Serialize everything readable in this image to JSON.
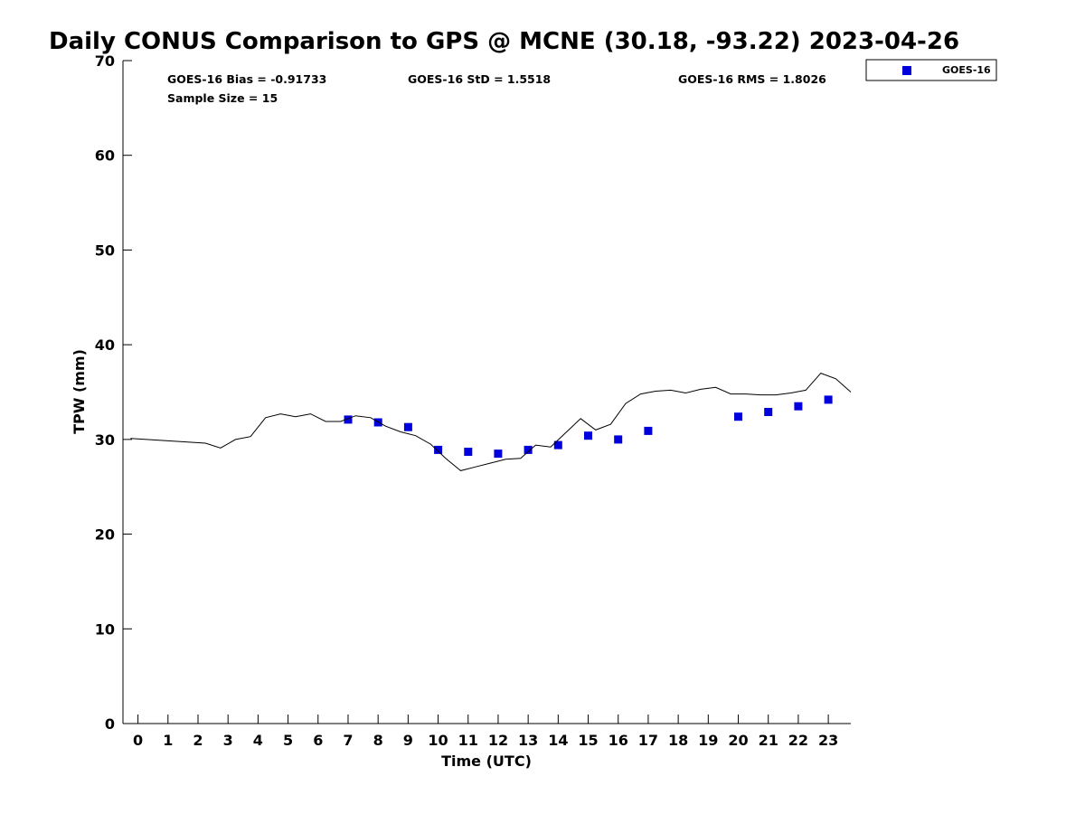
{
  "chart_data": {
    "type": "scatter",
    "title": "Daily CONUS Comparison to GPS @ MCNE (30.18, -93.22) 2023-04-26",
    "xlabel": "Time (UTC)",
    "ylabel": "TPW (mm)",
    "xlim": [
      -0.5,
      23.75
    ],
    "ylim": [
      0,
      70
    ],
    "x_ticks": [
      0,
      1,
      2,
      3,
      4,
      5,
      6,
      7,
      8,
      9,
      10,
      11,
      12,
      13,
      14,
      15,
      16,
      17,
      18,
      19,
      20,
      21,
      22,
      23
    ],
    "y_ticks": [
      0,
      10,
      20,
      30,
      40,
      50,
      60,
      70
    ],
    "grid": false,
    "legend_position": "top-right (outside plot)",
    "stats": {
      "bias": "GOES-16 Bias = -0.91733",
      "std": "GOES-16 StD = 1.5518",
      "rms": "GOES-16 RMS = 1.8026",
      "sample_size": "Sample Size = 15"
    },
    "series": [
      {
        "name": "GOES-16",
        "kind": "scatter",
        "color": "#0000dd",
        "marker": "square",
        "x": [
          7,
          8,
          9,
          10,
          11,
          12,
          13,
          14,
          15,
          16,
          17,
          20,
          21,
          22,
          23
        ],
        "y": [
          32.1,
          31.8,
          31.3,
          28.9,
          28.7,
          28.5,
          28.9,
          29.4,
          30.4,
          30.0,
          30.9,
          32.4,
          32.9,
          33.5,
          34.2
        ]
      },
      {
        "kind": "line",
        "color": "#000000",
        "x": [
          -0.25,
          2.25,
          2.75,
          3.25,
          3.75,
          4.25,
          4.75,
          5.25,
          5.75,
          6.25,
          6.75,
          7.25,
          7.75,
          8.25,
          8.75,
          9.25,
          9.75,
          10.25,
          10.75,
          11.25,
          11.75,
          12.25,
          12.75,
          13.25,
          13.75,
          14.25,
          14.75,
          15.25,
          15.75,
          16.25,
          16.75,
          17.25,
          17.75,
          18.25,
          18.75,
          19.25,
          19.75,
          20.25,
          20.75,
          21.25,
          21.75,
          22.25,
          22.75,
          23.25,
          23.75
        ],
        "y": [
          30.1,
          29.6,
          29.1,
          30.0,
          30.3,
          32.3,
          32.7,
          32.4,
          32.7,
          31.9,
          31.9,
          32.5,
          32.3,
          31.4,
          30.8,
          30.4,
          29.5,
          28.0,
          26.7,
          27.1,
          27.5,
          27.9,
          28.0,
          29.4,
          29.2,
          30.7,
          32.2,
          31.0,
          31.6,
          33.8,
          34.8,
          35.1,
          35.2,
          34.9,
          35.3,
          35.5,
          34.8,
          34.8,
          34.7,
          34.7,
          34.9,
          35.2,
          37.0,
          36.4,
          35.0
        ]
      }
    ]
  },
  "colors": {
    "marker": "#0000dd",
    "line": "#000000",
    "axis": "#000000"
  }
}
